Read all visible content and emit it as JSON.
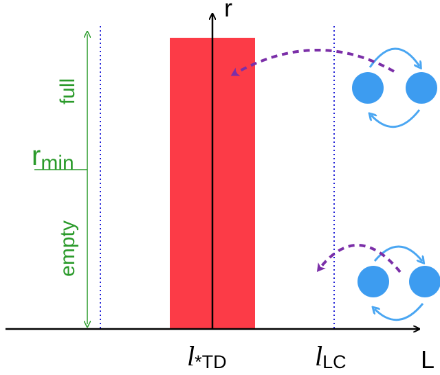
{
  "axes": {
    "y_label": "r",
    "x_label": "L"
  },
  "region_labels": {
    "full": "full",
    "empty": "empty",
    "r_min_main": "r",
    "r_min_sub": "min"
  },
  "ticks": {
    "l_td_main": "l",
    "l_td_sub": "*TD",
    "l_lc_main": "l",
    "l_lc_sub": "LC"
  },
  "colors": {
    "bar": "#fc3b47",
    "green": "#2a9a2a",
    "dotted_lines": "#1f1fd6",
    "arrow_dashed": "#7b2fa8",
    "binary_dots": "#3d9cf0",
    "binary_arrows": "#4aa6f2"
  }
}
